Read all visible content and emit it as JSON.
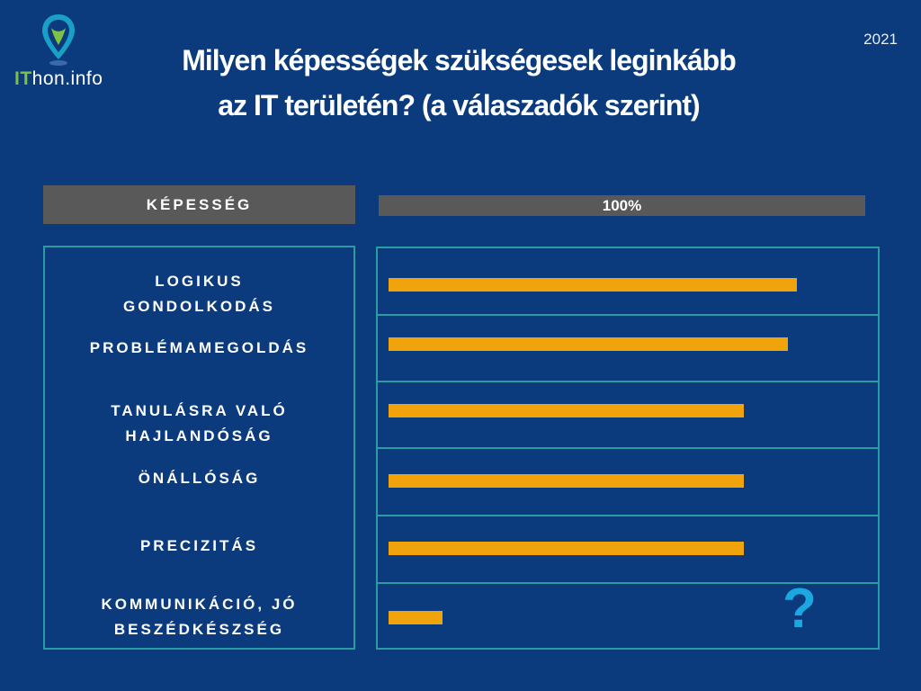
{
  "brand": {
    "logo_it": "IT",
    "logo_rest": "hon.info"
  },
  "year": "2021",
  "title": {
    "line1": "Milyen képességek szükségesek leginkább",
    "line2": "az IT területén? (a válaszadók szerint)"
  },
  "colors": {
    "background": "#0b3b7c",
    "bar": "#f0a30a",
    "border": "#2a9da3",
    "header": "#595959",
    "question": "#1ba8e0"
  },
  "chart_data": {
    "type": "bar",
    "orientation": "horizontal",
    "column_header": "KÉPESSÉG",
    "scale_label": "100%",
    "xlim": [
      0,
      100
    ],
    "categories": [
      {
        "line1": "LOGIKUS",
        "line2": "GONDOLKODÁS"
      },
      {
        "line1": "PROBLÉMAMEGOLDÁS",
        "line2": ""
      },
      {
        "line1": "TANULÁSRA VALÓ",
        "line2": "HAJLANDÓSÁG"
      },
      {
        "line1": "ÖNÁLLÓSÁG",
        "line2": ""
      },
      {
        "line1": "PRECIZITÁS",
        "line2": ""
      },
      {
        "line1": "KOMMUNIKÁCIÓ, JÓ",
        "line2": "BESZÉDKÉSZSÉG"
      }
    ],
    "values": [
      84,
      82,
      73,
      73,
      73,
      11
    ],
    "annotation": "?"
  }
}
